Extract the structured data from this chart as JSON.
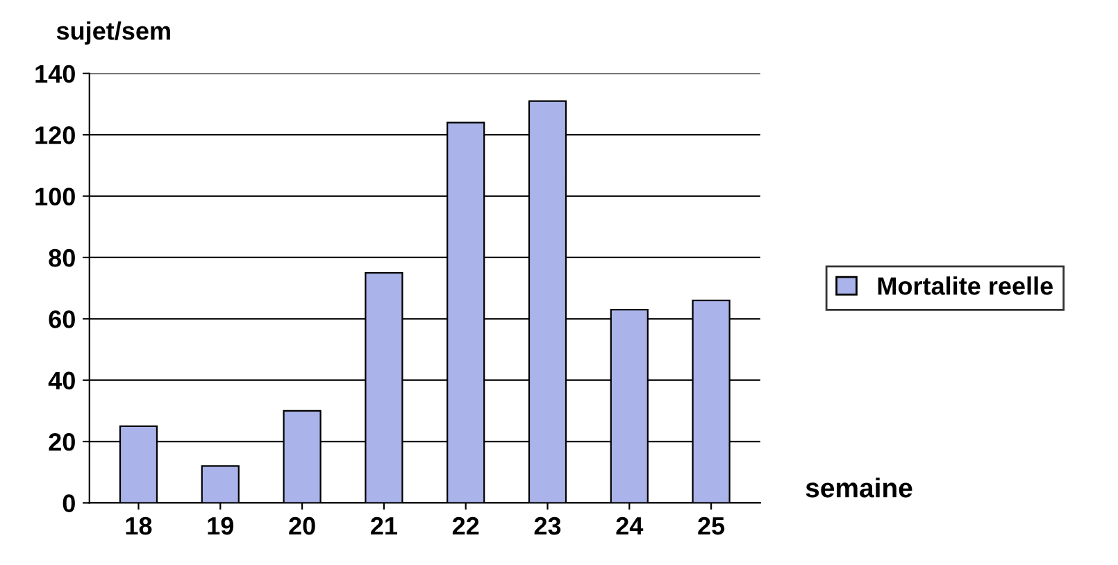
{
  "chart_data": {
    "type": "bar",
    "xlabel": "semaine",
    "ylabel": "sujet/sem",
    "categories": [
      "18",
      "19",
      "20",
      "21",
      "22",
      "23",
      "24",
      "25"
    ],
    "series": [
      {
        "name": "Mortalite reelle",
        "color": "#aab4ea",
        "values": [
          25,
          12,
          30,
          75,
          124,
          131,
          63,
          66
        ]
      }
    ],
    "ylim": [
      0,
      140
    ],
    "yticks": [
      0,
      20,
      40,
      60,
      80,
      100,
      120,
      140
    ],
    "grid": "y",
    "legend": "right"
  }
}
